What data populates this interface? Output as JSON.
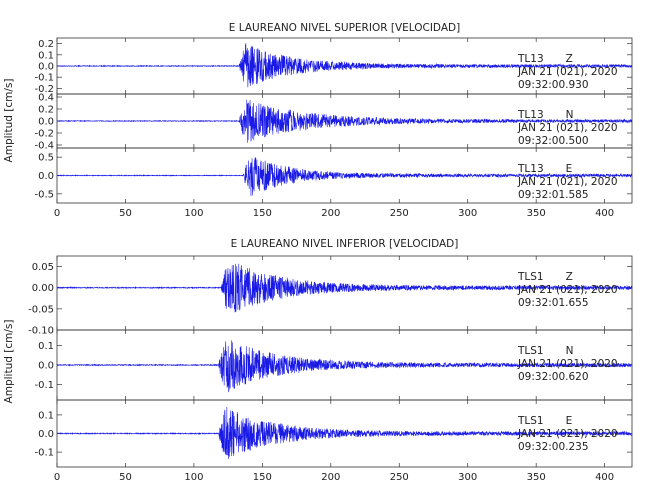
{
  "chart_data": [
    {
      "type": "line",
      "title": "E LAUREANO NIVEL SUPERIOR [VELOCIDAD]",
      "ylabel": "Amplitud [cm/s]",
      "xlabel": "",
      "xlim": [
        0,
        420
      ],
      "xticks": [
        "0",
        "50",
        "100",
        "150",
        "200",
        "250",
        "300",
        "350",
        "400"
      ],
      "grid": false,
      "traces": [
        {
          "station": "TL13",
          "component": "Z",
          "date": "JAN 21 (021), 2020",
          "time": "09:32:00.930",
          "ylim": [
            -0.25,
            0.25
          ],
          "yticks": [
            "0.2",
            "0.1",
            "0.0",
            "-0.1",
            "-0.2"
          ],
          "onset": 133,
          "peak": 0.24,
          "decay": 32
        },
        {
          "station": "TL13",
          "component": "N",
          "date": "JAN 21 (021), 2020",
          "time": "09:32:00.500",
          "ylim": [
            -0.45,
            0.45
          ],
          "yticks": [
            "0.4",
            "0.2",
            "0.0",
            "-0.2",
            "-0.4"
          ],
          "onset": 133,
          "peak": 0.42,
          "decay": 42
        },
        {
          "station": "TL13",
          "component": "E",
          "date": "JAN 21 (021), 2020",
          "time": "09:32:01.585",
          "ylim": [
            -0.75,
            0.75
          ],
          "yticks": [
            "0.5",
            "0.0",
            "-0.5"
          ],
          "onset": 136,
          "peak": 0.7,
          "decay": 28
        }
      ]
    },
    {
      "type": "line",
      "title": "E LAUREANO NIVEL INFERIOR [VELOCIDAD]",
      "ylabel": "Amplitud [cm/s]",
      "xlabel": "",
      "xlim": [
        0,
        420
      ],
      "xticks": [
        "0",
        "50",
        "100",
        "150",
        "200",
        "250",
        "300",
        "350",
        "400"
      ],
      "grid": false,
      "traces": [
        {
          "station": "TLS1",
          "component": "Z",
          "date": "JAN 21 (021), 2020",
          "time": "09:32:01.655",
          "ylim": [
            -0.1,
            0.075
          ],
          "yticks": [
            "0.05",
            "0.00",
            "-0.05",
            "-0.10"
          ],
          "onset": 120,
          "peak": 0.08,
          "decay": 35
        },
        {
          "station": "TLS1",
          "component": "N",
          "date": "JAN 21 (021), 2020",
          "time": "09:32:00.620",
          "ylim": [
            -0.18,
            0.18
          ],
          "yticks": [
            "0.1",
            "0.0",
            "-0.1"
          ],
          "onset": 118,
          "peak": 0.17,
          "decay": 35
        },
        {
          "station": "TLS1",
          "component": "E",
          "date": "JAN 21 (021), 2020",
          "time": "09:32:00.235",
          "ylim": [
            -0.18,
            0.18
          ],
          "yticks": [
            "0.1",
            "0.0",
            "-0.1"
          ],
          "onset": 118,
          "peak": 0.17,
          "decay": 35
        }
      ]
    }
  ]
}
